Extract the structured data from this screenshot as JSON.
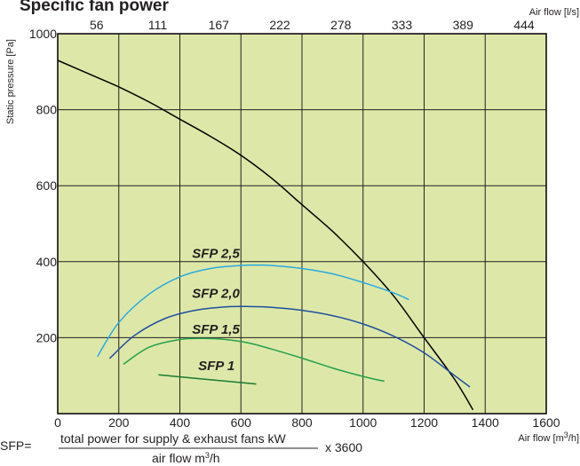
{
  "chart_data": {
    "type": "line",
    "title": "Specific fan power",
    "ylabel": "Static pressure [Pa]",
    "xlabel": "Air flow [m³/h]",
    "x2label": "Air flow [l/s]",
    "xlim": [
      0,
      1600
    ],
    "ylim": [
      0,
      1000
    ],
    "x_ticks": [
      0,
      200,
      400,
      600,
      800,
      1000,
      1200,
      1400,
      1600
    ],
    "y_ticks": [
      200,
      400,
      600,
      800,
      1000
    ],
    "x2_ticks": [
      {
        "label": "56",
        "at": 200
      },
      {
        "label": "111",
        "at": 400
      },
      {
        "label": "167",
        "at": 600
      },
      {
        "label": "222",
        "at": 800
      },
      {
        "label": "278",
        "at": 1000
      },
      {
        "label": "333",
        "at": 1200
      },
      {
        "label": "389",
        "at": 1400
      },
      {
        "label": "444",
        "at": 1600
      }
    ],
    "grid": true,
    "background_color": "#dde8a8",
    "series": [
      {
        "name": "",
        "color": "#000000",
        "x": [
          0,
          100,
          200,
          300,
          400,
          500,
          600,
          700,
          800,
          900,
          1000,
          1100,
          1200,
          1300,
          1360
        ],
        "y": [
          930,
          895,
          860,
          820,
          775,
          730,
          680,
          620,
          550,
          480,
          400,
          310,
          200,
          90,
          10
        ]
      },
      {
        "name": "SFP 2,5",
        "color": "#29a9e0",
        "x": [
          130,
          200,
          300,
          400,
          500,
          600,
          650,
          700,
          800,
          900,
          1000,
          1100,
          1150
        ],
        "y": [
          150,
          240,
          315,
          360,
          382,
          390,
          391,
          390,
          382,
          368,
          345,
          318,
          300
        ]
      },
      {
        "name": "SFP 2,0",
        "color": "#1f4fa0",
        "x": [
          170,
          250,
          350,
          450,
          550,
          620,
          700,
          800,
          900,
          1000,
          1100,
          1200,
          1300,
          1350
        ],
        "y": [
          145,
          205,
          250,
          272,
          281,
          282,
          280,
          272,
          258,
          236,
          204,
          160,
          100,
          70
        ]
      },
      {
        "name": "SFP 1,5",
        "color": "#23a04a",
        "x": [
          215,
          300,
          400,
          480,
          550,
          620,
          700,
          800,
          900,
          1000,
          1070
        ],
        "y": [
          130,
          175,
          195,
          198,
          195,
          187,
          170,
          146,
          120,
          98,
          85
        ]
      },
      {
        "name": "SFP 1",
        "color": "#1a7a30",
        "x": [
          330,
          650
        ],
        "y": [
          102,
          78
        ]
      }
    ],
    "annotations": [
      {
        "text": "SFP 2,5",
        "x": 440,
        "y": 410
      },
      {
        "text": "SFP 2,0",
        "x": 440,
        "y": 305
      },
      {
        "text": "SFP 1,5",
        "x": 440,
        "y": 210
      },
      {
        "text": "SFP 1",
        "x": 460,
        "y": 115
      }
    ]
  },
  "formula": {
    "prefix": "SFP=",
    "numerator": "total power for supply & exhaust fans kW",
    "denominator_text": "air flow m",
    "denominator_sup": "3",
    "denominator_suffix": "/h",
    "multiplier": "x 3600"
  }
}
